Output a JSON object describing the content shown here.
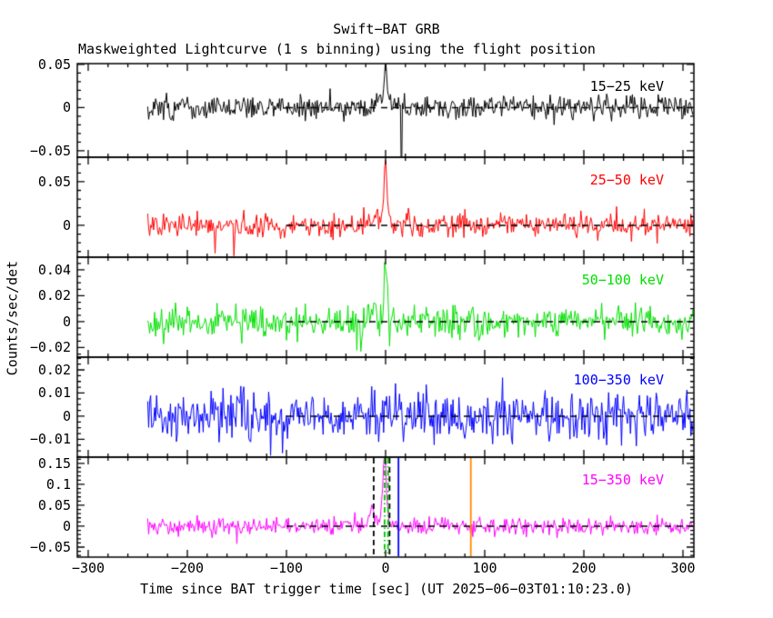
{
  "chart_data": {
    "type": "line",
    "title": "Swift−BAT GRB",
    "subtitle": "Maskweighted Lightcurve (1 s binning) using the flight position",
    "xlabel": "Time since BAT trigger time [sec] (UT 2025−06−03T01:10:23.0)",
    "ylabel": "Counts/sec/det",
    "grid": false,
    "bin_seconds": 1,
    "data_time_range": [
      -240,
      311
    ],
    "x_axis": {
      "min": -311,
      "max": 311,
      "major_tick_step": 100,
      "minor_tick_step": 20,
      "ticks": [
        {
          "value": -300,
          "label": "−300"
        },
        {
          "value": -200,
          "label": "−200"
        },
        {
          "value": -100,
          "label": "−100"
        },
        {
          "value": 0,
          "label": "0"
        },
        {
          "value": 100,
          "label": "100"
        },
        {
          "value": 200,
          "label": "200"
        },
        {
          "value": 300,
          "label": "300"
        }
      ]
    },
    "baseline": {
      "value": 0,
      "t_start": -100,
      "t_end": 311,
      "color": "#000000",
      "style": "dashed"
    },
    "panels": [
      {
        "band": "15−25 keV",
        "color": "#000000",
        "ylim": [
          -0.0574,
          0.051
        ],
        "major_tick_step": 0.05,
        "minor_tick_step": 0.01,
        "yticks": [
          {
            "value": 0.05,
            "label": "0.05"
          },
          {
            "value": 0,
            "label": "0"
          },
          {
            "value": -0.05,
            "label": "−0.05"
          }
        ],
        "noise_sigma": 0.0068,
        "seed": 101,
        "peaks": [
          {
            "t": -4,
            "amplitude": 0.011,
            "width": 7
          },
          {
            "t": 0,
            "amplitude": 0.048,
            "width": 1.3
          }
        ],
        "spikes": [
          {
            "t": 16,
            "value": -0.095
          }
        ]
      },
      {
        "band": "25−50 keV",
        "color": "#ff0000",
        "ylim": [
          -0.0365,
          0.078
        ],
        "major_tick_step": 0.05,
        "minor_tick_step": 0.01,
        "yticks": [
          {
            "value": 0.05,
            "label": "0.05"
          },
          {
            "value": 0,
            "label": "0"
          }
        ],
        "noise_sigma": 0.0068,
        "seed": 202,
        "peaks": [
          {
            "t": -3,
            "amplitude": 0.008,
            "width": 6
          },
          {
            "t": 0,
            "amplitude": 0.07,
            "width": 1.4
          }
        ],
        "spikes": [
          {
            "t": -172,
            "value": -0.032
          },
          {
            "t": -153,
            "value": -0.035
          }
        ]
      },
      {
        "band": "50−100 keV",
        "color": "#00e000",
        "ylim": [
          -0.0274,
          0.0498
        ],
        "major_tick_step": 0.02,
        "minor_tick_step": 0.005,
        "yticks": [
          {
            "value": 0.04,
            "label": "0.04"
          },
          {
            "value": 0.02,
            "label": "0.02"
          },
          {
            "value": 0,
            "label": "0"
          },
          {
            "value": -0.02,
            "label": "−0.02"
          }
        ],
        "noise_sigma": 0.0062,
        "seed": 303,
        "peaks": [
          {
            "t": -13,
            "amplitude": 0.012,
            "width": 3
          },
          {
            "t": 0,
            "amplitude": 0.041,
            "width": 1.6
          }
        ],
        "spikes": [
          {
            "t": -25,
            "value": -0.023
          }
        ]
      },
      {
        "band": "100−350 keV",
        "color": "#0000ff",
        "ylim": [
          -0.0177,
          0.0255
        ],
        "major_tick_step": 0.01,
        "minor_tick_step": 0.0025,
        "yticks": [
          {
            "value": 0.02,
            "label": "0.02"
          },
          {
            "value": 0.01,
            "label": "0.01"
          },
          {
            "value": 0,
            "label": "0"
          },
          {
            "value": -0.01,
            "label": "−0.01"
          }
        ],
        "noise_sigma": 0.0056,
        "seed": 404,
        "peaks": [
          {
            "t": 0,
            "amplitude": 0.007,
            "width": 1.5
          }
        ],
        "spikes": []
      },
      {
        "band": "15−350 keV",
        "color": "#ff00ff",
        "ylim": [
          -0.0739,
          0.165
        ],
        "major_tick_step": 0.05,
        "minor_tick_step": 0.01,
        "yticks": [
          {
            "value": 0.15,
            "label": "0.15"
          },
          {
            "value": 0.1,
            "label": "0.1"
          },
          {
            "value": 0.05,
            "label": "0.05"
          },
          {
            "value": 0,
            "label": "0"
          },
          {
            "value": -0.05,
            "label": "−0.05"
          }
        ],
        "noise_sigma": 0.0105,
        "seed": 505,
        "peaks": [
          {
            "t": -14,
            "amplitude": 0.055,
            "width": 2
          },
          {
            "t": -4,
            "amplitude": 0.02,
            "width": 6
          },
          {
            "t": -1,
            "amplitude": 0.16,
            "width": 1.6
          }
        ],
        "spikes": [
          {
            "t": -150,
            "value": -0.042
          }
        ]
      }
    ],
    "event_markers": [
      {
        "t": -12,
        "color": "#000000",
        "style": "dashed"
      },
      {
        "t": 4,
        "color": "#000000",
        "style": "dashed"
      },
      {
        "t": -1,
        "color": "#00c000",
        "style": "dashdot"
      },
      {
        "t": 2.5,
        "color": "#00c000",
        "style": "dashdot"
      },
      {
        "t": 13,
        "color": "#0000ff",
        "style": "solid"
      },
      {
        "t": 86,
        "color": "#ff8c00",
        "style": "solid"
      }
    ]
  }
}
